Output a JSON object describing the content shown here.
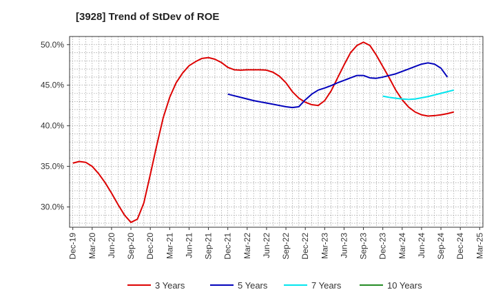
{
  "chart_data": {
    "type": "line",
    "title": "[3928]  Trend of StDev of ROE",
    "xlabel": "",
    "ylabel": "",
    "grid": true,
    "legend_position": "bottom",
    "x_ticks": [
      "Dec-19",
      "Mar-20",
      "Jun-20",
      "Sep-20",
      "Dec-20",
      "Mar-21",
      "Jun-21",
      "Sep-21",
      "Dec-21",
      "Mar-22",
      "Jun-22",
      "Sep-22",
      "Dec-22",
      "Mar-23",
      "Jun-23",
      "Sep-23",
      "Dec-23",
      "Mar-24",
      "Jun-24",
      "Sep-24",
      "Dec-24",
      "Mar-25"
    ],
    "y_ticks": [
      "30.0%",
      "35.0%",
      "40.0%",
      "45.0%",
      "50.0%"
    ],
    "y_tick_values": [
      30,
      35,
      40,
      45,
      50
    ],
    "ylim": [
      27.5,
      51.0
    ],
    "x_count": 64,
    "x_tick_step": 3,
    "series": [
      {
        "name": "3 Years",
        "color": "#dd0000",
        "start_index": 0,
        "values": [
          35.4,
          35.6,
          35.5,
          35.0,
          34.1,
          33.0,
          31.7,
          30.3,
          29.0,
          28.1,
          28.5,
          30.5,
          34.0,
          37.6,
          41.0,
          43.5,
          45.3,
          46.5,
          47.4,
          47.9,
          48.3,
          48.4,
          48.2,
          47.8,
          47.2,
          46.9,
          46.85,
          46.9,
          46.9,
          46.9,
          46.85,
          46.6,
          46.1,
          45.3,
          44.2,
          43.4,
          42.9,
          42.6,
          42.5,
          43.1,
          44.3,
          45.9,
          47.5,
          49.0,
          49.9,
          50.3,
          49.9,
          48.7,
          47.3,
          45.9,
          44.4,
          43.2,
          42.3,
          41.7,
          41.35,
          41.2,
          41.25,
          41.35,
          41.5,
          41.7
        ]
      },
      {
        "name": "5 Years",
        "color": "#0000bb",
        "start_index": 24,
        "values": [
          43.9,
          43.7,
          43.5,
          43.3,
          43.1,
          42.95,
          42.8,
          42.65,
          42.5,
          42.35,
          42.25,
          42.35,
          43.2,
          43.9,
          44.4,
          44.65,
          44.95,
          45.3,
          45.6,
          45.9,
          46.2,
          46.2,
          45.9,
          45.85,
          46.0,
          46.2,
          46.4,
          46.7,
          47.0,
          47.3,
          47.6,
          47.75,
          47.6,
          47.1,
          46.0
        ]
      },
      {
        "name": "7 Years",
        "color": "#00e5ee",
        "start_index": 48,
        "values": [
          43.65,
          43.5,
          43.4,
          43.3,
          43.25,
          43.3,
          43.45,
          43.6,
          43.8,
          44.0,
          44.2,
          44.4
        ]
      },
      {
        "name": "10 Years",
        "color": "#228b22",
        "start_index": 0,
        "values": []
      }
    ]
  }
}
